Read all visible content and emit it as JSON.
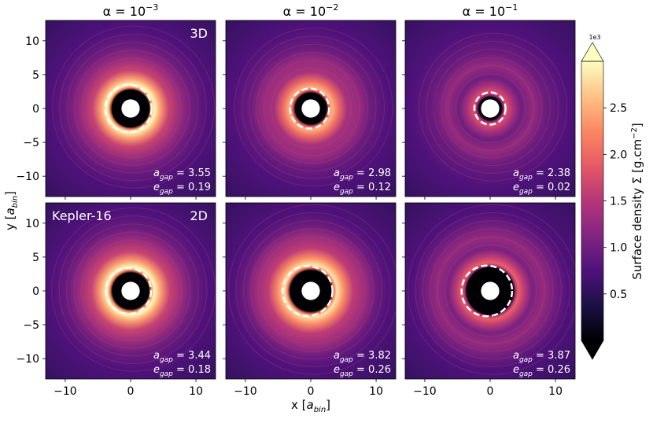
{
  "figure": {
    "xlabel_var": "x",
    "xlabel_unit": "a",
    "xlabel_unit_sub": "bin",
    "ylabel_var": "y",
    "ylabel_unit": "a",
    "ylabel_unit_sub": "bin"
  },
  "chart_data": {
    "type": "heatmap",
    "description_axes": {
      "xlim": [
        -13,
        13
      ],
      "ylim": [
        -13,
        13
      ],
      "xticks": [
        -10,
        0,
        10
      ],
      "yticks": [
        -10,
        -5,
        0,
        5,
        10
      ],
      "xtick_labels": [
        "−10",
        "0",
        "10"
      ],
      "ytick_labels": [
        "−10",
        "−5",
        "0",
        "5",
        "10"
      ]
    },
    "column_titles": [
      {
        "prefix": "α = 10",
        "exp": "−3"
      },
      {
        "prefix": "α = 10",
        "exp": "−2"
      },
      {
        "prefix": "α = 10",
        "exp": "−1"
      }
    ],
    "row_tags": [
      {
        "left": "",
        "right": "3D"
      },
      {
        "left": "Kepler-16",
        "right": "2D"
      }
    ],
    "panels": [
      {
        "row": 0,
        "col": 0,
        "a_gap": "3.55",
        "e_gap": "0.19",
        "ring_radius": 3.6,
        "ring_width": 1.6,
        "bright": 1.0
      },
      {
        "row": 0,
        "col": 1,
        "a_gap": "2.98",
        "e_gap": "0.12",
        "ring_radius": 3.2,
        "ring_width": 1.7,
        "bright": 0.85
      },
      {
        "row": 0,
        "col": 2,
        "a_gap": "2.38",
        "e_gap": "0.02",
        "ring_radius": 2.5,
        "ring_width": 1.6,
        "bright": 0.6
      },
      {
        "row": 1,
        "col": 0,
        "a_gap": "3.44",
        "e_gap": "0.18",
        "ring_radius": 3.6,
        "ring_width": 1.7,
        "bright": 1.0
      },
      {
        "row": 1,
        "col": 1,
        "a_gap": "3.82",
        "e_gap": "0.26",
        "ring_radius": 4.0,
        "ring_width": 1.8,
        "bright": 0.95
      },
      {
        "row": 1,
        "col": 2,
        "a_gap": "3.87",
        "e_gap": "0.26",
        "ring_radius": 4.3,
        "ring_width": 1.5,
        "bright": 0.65
      }
    ],
    "anno_labels": {
      "a_var": "a",
      "a_sub": "gap",
      "e_var": "e",
      "e_sub": "gap",
      "eq": " = "
    },
    "colorbar": {
      "label": "Surface density Σ [g.cm",
      "label_exp": "−2",
      "label_end": "]",
      "multiplier": "1e3",
      "min": 0,
      "max": 3.0,
      "ticks": [
        0.5,
        1.0,
        1.5,
        2.0,
        2.5
      ],
      "tick_labels": [
        "0.5",
        "1.0",
        "1.5",
        "2.0",
        "2.5"
      ],
      "colormap": "magma",
      "extend": "both"
    }
  },
  "colors": {
    "magma_stops": [
      "#000004",
      "#1c1044",
      "#4f127b",
      "#812581",
      "#b5367a",
      "#e55964",
      "#fb8761",
      "#fec287",
      "#fcfdbf"
    ]
  }
}
